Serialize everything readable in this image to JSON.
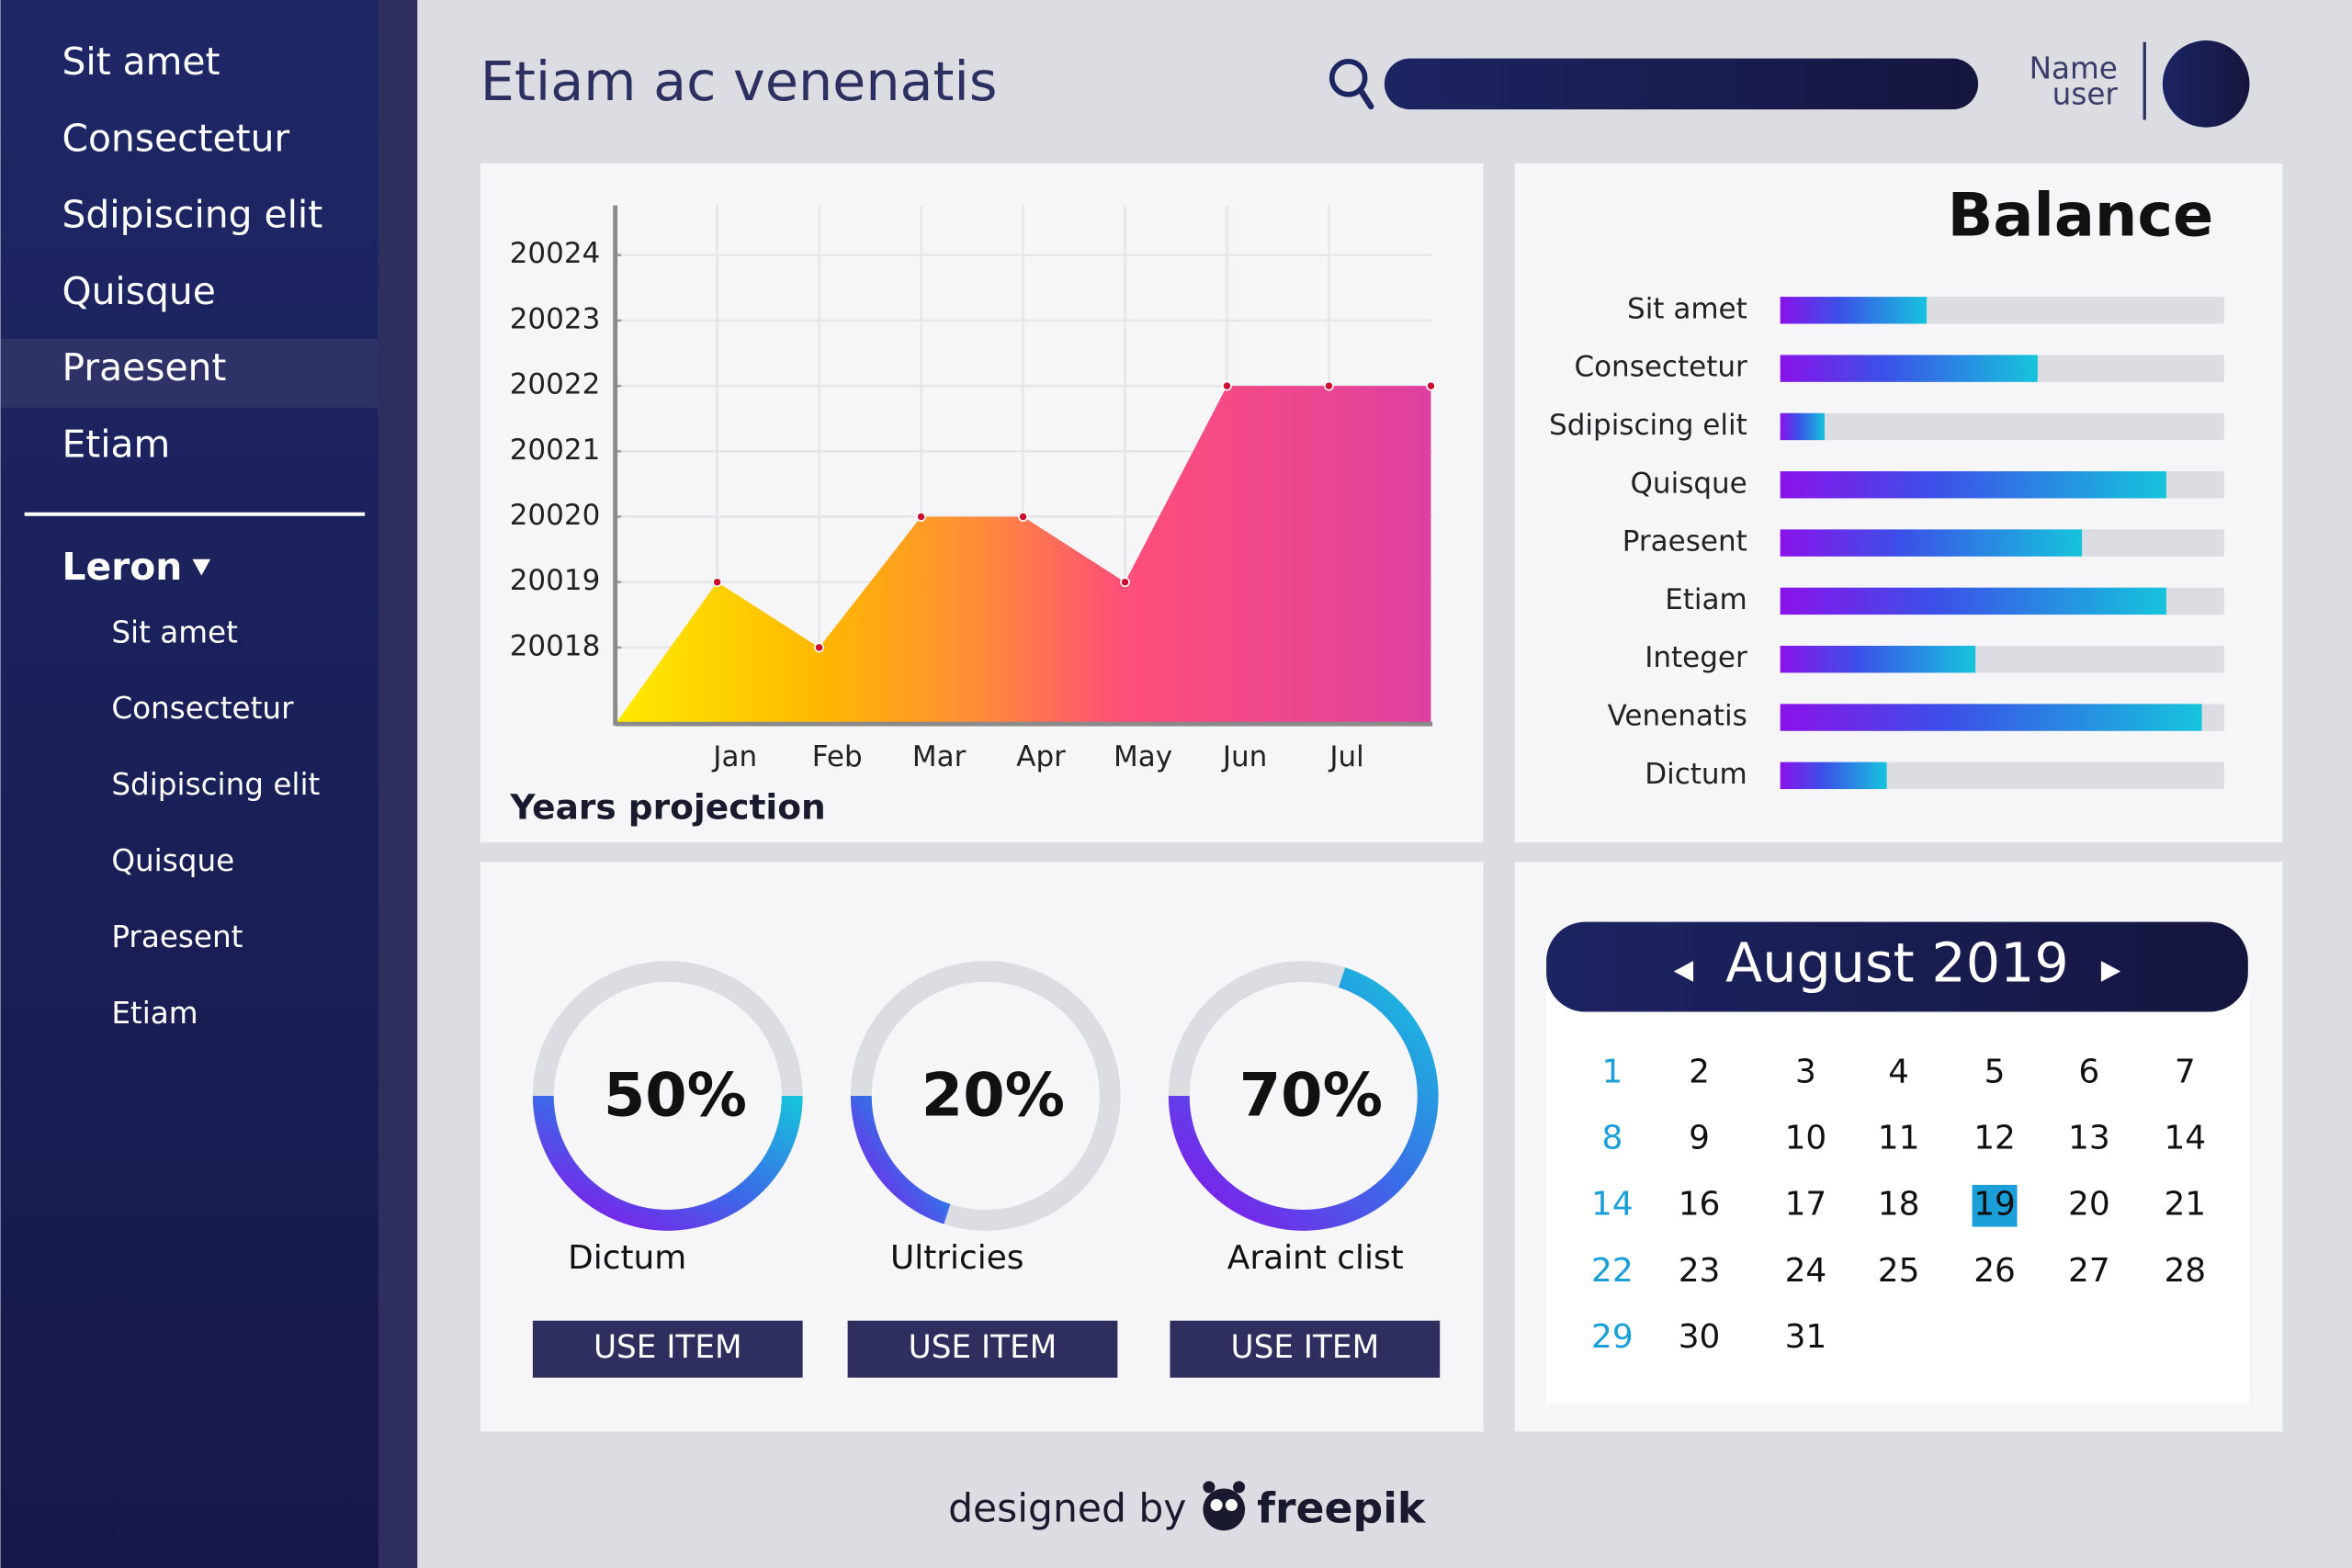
{
  "sidebar": {
    "menu": [
      "Sit amet",
      "Consectetur",
      "Sdipiscing elit",
      "Quisque",
      "Praesent",
      "Etiam"
    ],
    "section": "Leron",
    "submenu": [
      "Sit amet",
      "Consectetur",
      "Sdipiscing elit",
      "Quisque",
      "Praesent",
      "Etiam"
    ]
  },
  "header": {
    "title": "Etiam ac venenatis",
    "user": [
      "Name",
      "user"
    ]
  },
  "projection": {
    "type": "area",
    "label": "Years projection",
    "categories": [
      null,
      "Jan",
      "Feb",
      "Mar",
      "Apr",
      "May",
      "Jun",
      "Jul",
      null
    ],
    "values": [
      20016.83,
      20019,
      20018,
      20020,
      20020,
      20019,
      20022,
      20022,
      20022
    ],
    "ylim": [
      20016.83,
      20024.76
    ],
    "yticks": [
      20018,
      20019,
      20020,
      20021,
      20022,
      20023,
      20024
    ],
    "grid": true
  },
  "balance": {
    "type": "bar",
    "title": "Balance",
    "categories": [
      "Sit amet",
      "Consectetur",
      "Sdipiscing elit",
      "Quisque",
      "Praesent",
      "Etiam",
      "Integer",
      "Venenatis",
      "Dictum"
    ],
    "values": [
      33,
      58,
      10,
      87,
      68,
      87,
      44,
      95,
      24
    ],
    "xlim": [
      0,
      100
    ]
  },
  "gauges": {
    "type": "donut",
    "values": [
      50,
      20,
      70
    ],
    "value_labels": [
      "50%",
      "20%",
      "70%"
    ],
    "labels": [
      "Dictum",
      "Ultricies",
      "Araint clist"
    ],
    "buttons": [
      "USE ITEM",
      "USE ITEM",
      "USE ITEM"
    ]
  },
  "calendar": {
    "month": "August 2019",
    "selected": 19,
    "rows": [
      [
        1,
        2,
        3,
        4,
        5,
        6,
        7
      ],
      [
        8,
        9,
        10,
        11,
        12,
        13,
        14
      ],
      [
        14,
        16,
        17,
        18,
        19,
        20,
        21
      ],
      [
        22,
        23,
        24,
        25,
        26,
        27,
        28
      ],
      [
        29,
        30,
        31
      ]
    ]
  },
  "footer": {
    "text": "designed by",
    "brand": "freepik"
  }
}
